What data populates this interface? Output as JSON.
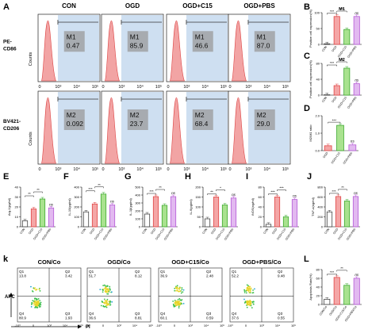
{
  "figure": {
    "panel_letters": {
      "A": "A",
      "B": "B",
      "C": "C",
      "D": "D",
      "E": "E",
      "F": "F",
      "G": "G",
      "H": "H",
      "I": "I",
      "J": "J",
      "K": "k",
      "L": "L"
    }
  },
  "colors": {
    "bar_con": "#ffffff",
    "bar_ogd": "#f4a6a6",
    "bar_c15": "#a9e28f",
    "bar_pbs": "#e2b9f0",
    "edge_con": "#444444",
    "edge_ogd": "#e14545",
    "edge_c15": "#3daa2f",
    "edge_pbs": "#b65ad6",
    "histo_fill": "#f2a4a4",
    "gate_fill": "#c6d9ef"
  },
  "flow_histograms": {
    "column_titles": [
      "CON",
      "OGD",
      "OGD+C15",
      "OGD+PBS"
    ],
    "rows": [
      {
        "marker_label": "PE-\nCD86",
        "y_axis_label": "Counts",
        "gate_name": "M1",
        "values": [
          "0.47",
          "85.9",
          "46.6",
          "87.0"
        ]
      },
      {
        "marker_label": "BV421-\nCD206",
        "y_axis_label": "Counts",
        "gate_name": "M2",
        "values": [
          "0.092",
          "23.7",
          "68.4",
          "29.0"
        ]
      }
    ],
    "x_tick_labels": [
      "0",
      "10³",
      "10⁴",
      "10⁵"
    ]
  },
  "chart_data": [
    {
      "panel": "B",
      "type": "bar",
      "title": "M1",
      "ylabel": "Positive cell expression(%)",
      "categories": [
        "CON",
        "OGD",
        "OGD+C15",
        "OGD+PBS"
      ],
      "values": [
        2,
        88,
        47,
        88
      ],
      "ylim": [
        0,
        100
      ],
      "yticks": [
        "0",
        "50",
        "100"
      ],
      "annotations": [
        "***",
        "***",
        "ns"
      ]
    },
    {
      "panel": "C",
      "type": "bar",
      "title": "M2",
      "ylabel": "Positive cell expression(%)",
      "categories": [
        "CON",
        "OGD",
        "OGD+C15",
        "OGD+PBS"
      ],
      "values": [
        1,
        24,
        68,
        29
      ],
      "ylim": [
        0,
        80
      ],
      "yticks": [
        "0",
        "40",
        "80"
      ],
      "annotations": [
        "***",
        "**",
        "ns"
      ]
    },
    {
      "panel": "D",
      "type": "bar",
      "title": "",
      "ylabel": "M2/M1 ratio",
      "categories": [
        "OGD",
        "OGD+C15",
        "OGD+PBS"
      ],
      "values": [
        0.28,
        1.45,
        0.33
      ],
      "ylim": [
        0,
        2
      ],
      "yticks": [
        "0.0",
        "1.0",
        "2.0"
      ],
      "annotations": [
        "***",
        "ns"
      ]
    },
    {
      "panel": "E",
      "type": "bar",
      "title": "",
      "ylabel": "Arg-1(pg/ml)",
      "categories": [
        "CON",
        "OGD",
        "OGD+C15",
        "OGD+PBS"
      ],
      "values": [
        6,
        18,
        28,
        19
      ],
      "ylim": [
        0,
        40
      ],
      "yticks": [
        "0",
        "10",
        "20",
        "30",
        "40"
      ],
      "annotations": [
        "**",
        "**",
        "ns"
      ]
    },
    {
      "panel": "F",
      "type": "bar",
      "title": "",
      "ylabel": "IL-10(pg/ml)",
      "categories": [
        "CON",
        "OGD",
        "OGD+C15",
        "OGD+PBS"
      ],
      "values": [
        150,
        230,
        330,
        220
      ],
      "ylim": [
        0,
        400
      ],
      "yticks": [
        "0",
        "100",
        "200",
        "300",
        "400"
      ],
      "annotations": [
        "***",
        "**",
        "ns"
      ]
    },
    {
      "panel": "G",
      "type": "bar",
      "title": "",
      "ylabel": "IL-1β(pg/ml)",
      "categories": [
        "CON",
        "OGD",
        "OGD+C15",
        "OGD+PBS"
      ],
      "values": [
        160,
        380,
        270,
        380
      ],
      "ylim": [
        0,
        500
      ],
      "yticks": [
        "0",
        "100",
        "200",
        "300",
        "400",
        "500"
      ],
      "annotations": [
        "***",
        "**",
        "ns"
      ]
    },
    {
      "panel": "H",
      "type": "bar",
      "title": "",
      "ylabel": "IL-6(pg/ml)",
      "categories": [
        "CON",
        "OGD",
        "OGD+C15",
        "OGD+PBS"
      ],
      "values": [
        40,
        150,
        110,
        145
      ],
      "ylim": [
        0,
        200
      ],
      "yticks": [
        "0",
        "50",
        "100",
        "150",
        "200"
      ],
      "annotations": [
        "**",
        "*",
        "ns"
      ]
    },
    {
      "panel": "I",
      "type": "bar",
      "title": "",
      "ylabel": "iNOS(ng/ml)",
      "categories": [
        "CON",
        "OGD",
        "OGD+C15",
        "OGD+PBS"
      ],
      "values": [
        5,
        60,
        20,
        55
      ],
      "ylim": [
        0,
        80
      ],
      "yticks": [
        "0",
        "20",
        "40",
        "60",
        "80"
      ],
      "annotations": [
        "***",
        "***",
        "ns"
      ]
    },
    {
      "panel": "J",
      "type": "bar",
      "title": "",
      "ylabel": "TNF-α(ng/ml)",
      "categories": [
        "CON",
        "OGD",
        "OGD+C15",
        "OGD+PBS"
      ],
      "values": [
        300,
        610,
        520,
        610
      ],
      "ylim": [
        0,
        800
      ],
      "yticks": [
        "0",
        "200",
        "400",
        "600",
        "800"
      ],
      "annotations": [
        "***",
        "**",
        "ns"
      ]
    },
    {
      "panel": "L",
      "type": "bar",
      "title": "",
      "ylabel": "Apoptosis Rate(%)",
      "categories": [
        "CON/Co",
        "OGD/Co",
        "OGD+C15/Co",
        "OGD+PBS/Co"
      ],
      "values": [
        12,
        62,
        44,
        60
      ],
      "ylim": [
        0,
        80
      ],
      "yticks": [
        "0",
        "20",
        "40",
        "60",
        "80"
      ],
      "annotations": [
        "***",
        "**",
        "ns"
      ]
    }
  ],
  "flow_scatter": {
    "titles": [
      "CON/Co",
      "OGD/Co",
      "OGD+C15/Co",
      "OGD+PBS/Co"
    ],
    "quadrant_names": [
      "Q1",
      "Q2",
      "Q3",
      "Q4"
    ],
    "quadrants": [
      {
        "Q1": "13.8",
        "Q2": "3.42",
        "Q3": "1.93",
        "Q4": "80.9"
      },
      {
        "Q1": "51.7",
        "Q2": "8.12",
        "Q3": "8.81",
        "Q4": "36.6"
      },
      {
        "Q1": "36.9",
        "Q2": "2.48",
        "Q3": "0.59",
        "Q4": "60.1"
      },
      {
        "Q1": "52.2",
        "Q2": "9.48",
        "Q3": "0.55",
        "Q4": "37.6"
      }
    ],
    "y_axis_label": "APC",
    "x_axis_label": "PI",
    "tick_labels": [
      "-10³",
      "0",
      "10³",
      "10⁴",
      "10⁵"
    ]
  }
}
